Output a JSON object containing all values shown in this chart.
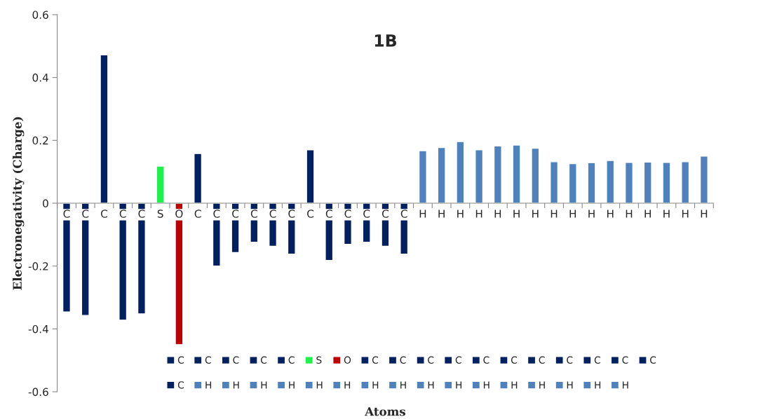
{
  "chart_data": {
    "type": "bar",
    "title": "1B",
    "xlabel": "Atoms",
    "ylabel": "Electronegativity (Charge)",
    "categories": [
      "C",
      "C",
      "C",
      "C",
      "C",
      "S",
      "O",
      "C",
      "C",
      "C",
      "C",
      "C",
      "C",
      "C",
      "C",
      "C",
      "C",
      "C",
      "C",
      "H",
      "H",
      "H",
      "H",
      "H",
      "H",
      "H",
      "H",
      "H",
      "H",
      "H",
      "H",
      "H",
      "H",
      "H",
      "H"
    ],
    "series": [
      {
        "name": "C",
        "color": "#002060",
        "values": [
          -0.346,
          null,
          null,
          null,
          null,
          null,
          null,
          null,
          null,
          null,
          null,
          null,
          null,
          null,
          null,
          null,
          null,
          null,
          null,
          null,
          null,
          null,
          null,
          null,
          null,
          null,
          null,
          null,
          null,
          null,
          null,
          null,
          null,
          null,
          null
        ]
      },
      {
        "name": "C",
        "color": "#002060",
        "values": [
          null,
          -0.357,
          null,
          null,
          null,
          null,
          null,
          null,
          null,
          null,
          null,
          null,
          null,
          null,
          null,
          null,
          null,
          null,
          null,
          null,
          null,
          null,
          null,
          null,
          null,
          null,
          null,
          null,
          null,
          null,
          null,
          null,
          null,
          null,
          null
        ]
      },
      {
        "name": "C",
        "color": "#002060",
        "values": [
          null,
          null,
          0.472,
          null,
          null,
          null,
          null,
          null,
          null,
          null,
          null,
          null,
          null,
          null,
          null,
          null,
          null,
          null,
          null,
          null,
          null,
          null,
          null,
          null,
          null,
          null,
          null,
          null,
          null,
          null,
          null,
          null,
          null,
          null,
          null
        ]
      },
      {
        "name": "C",
        "color": "#002060",
        "values": [
          null,
          null,
          null,
          -0.372,
          null,
          null,
          null,
          null,
          null,
          null,
          null,
          null,
          null,
          null,
          null,
          null,
          null,
          null,
          null,
          null,
          null,
          null,
          null,
          null,
          null,
          null,
          null,
          null,
          null,
          null,
          null,
          null,
          null,
          null,
          null
        ]
      },
      {
        "name": "C",
        "color": "#002060",
        "values": [
          null,
          null,
          null,
          null,
          -0.352,
          null,
          null,
          null,
          null,
          null,
          null,
          null,
          null,
          null,
          null,
          null,
          null,
          null,
          null,
          null,
          null,
          null,
          null,
          null,
          null,
          null,
          null,
          null,
          null,
          null,
          null,
          null,
          null,
          null,
          null
        ]
      },
      {
        "name": "S",
        "color": "#1ef24a",
        "values": [
          null,
          null,
          null,
          null,
          null,
          0.118,
          null,
          null,
          null,
          null,
          null,
          null,
          null,
          null,
          null,
          null,
          null,
          null,
          null,
          null,
          null,
          null,
          null,
          null,
          null,
          null,
          null,
          null,
          null,
          null,
          null,
          null,
          null,
          null,
          null
        ]
      },
      {
        "name": "O",
        "color": "#c00000",
        "values": [
          null,
          null,
          null,
          null,
          null,
          null,
          -0.45,
          null,
          null,
          null,
          null,
          null,
          null,
          null,
          null,
          null,
          null,
          null,
          null,
          null,
          null,
          null,
          null,
          null,
          null,
          null,
          null,
          null,
          null,
          null,
          null,
          null,
          null,
          null,
          null
        ]
      },
      {
        "name": "C",
        "color": "#002060",
        "values": [
          null,
          null,
          null,
          null,
          null,
          null,
          null,
          0.158,
          null,
          null,
          null,
          null,
          null,
          null,
          null,
          null,
          null,
          null,
          null,
          null,
          null,
          null,
          null,
          null,
          null,
          null,
          null,
          null,
          null,
          null,
          null,
          null,
          null,
          null,
          null
        ]
      },
      {
        "name": "C",
        "color": "#002060",
        "values": [
          null,
          null,
          null,
          null,
          null,
          null,
          null,
          null,
          -0.2,
          null,
          null,
          null,
          null,
          null,
          null,
          null,
          null,
          null,
          null,
          null,
          null,
          null,
          null,
          null,
          null,
          null,
          null,
          null,
          null,
          null,
          null,
          null,
          null,
          null,
          null
        ]
      },
      {
        "name": "C",
        "color": "#002060",
        "values": [
          null,
          null,
          null,
          null,
          null,
          null,
          null,
          null,
          null,
          -0.157,
          null,
          null,
          null,
          null,
          null,
          null,
          null,
          null,
          null,
          null,
          null,
          null,
          null,
          null,
          null,
          null,
          null,
          null,
          null,
          null,
          null,
          null,
          null,
          null,
          null
        ]
      },
      {
        "name": "C",
        "color": "#002060",
        "values": [
          null,
          null,
          null,
          null,
          null,
          null,
          null,
          null,
          null,
          null,
          -0.124,
          null,
          null,
          null,
          null,
          null,
          null,
          null,
          null,
          null,
          null,
          null,
          null,
          null,
          null,
          null,
          null,
          null,
          null,
          null,
          null,
          null,
          null,
          null,
          null
        ]
      },
      {
        "name": "C",
        "color": "#002060",
        "values": [
          null,
          null,
          null,
          null,
          null,
          null,
          null,
          null,
          null,
          null,
          null,
          -0.137,
          null,
          null,
          null,
          null,
          null,
          null,
          null,
          null,
          null,
          null,
          null,
          null,
          null,
          null,
          null,
          null,
          null,
          null,
          null,
          null,
          null,
          null,
          null
        ]
      },
      {
        "name": "C",
        "color": "#002060",
        "values": [
          null,
          null,
          null,
          null,
          null,
          null,
          null,
          null,
          null,
          null,
          null,
          null,
          -0.162,
          null,
          null,
          null,
          null,
          null,
          null,
          null,
          null,
          null,
          null,
          null,
          null,
          null,
          null,
          null,
          null,
          null,
          null,
          null,
          null,
          null,
          null
        ]
      },
      {
        "name": "C",
        "color": "#002060",
        "values": [
          null,
          null,
          null,
          null,
          null,
          null,
          null,
          null,
          null,
          null,
          null,
          null,
          null,
          0.17,
          null,
          null,
          null,
          null,
          null,
          null,
          null,
          null,
          null,
          null,
          null,
          null,
          null,
          null,
          null,
          null,
          null,
          null,
          null,
          null,
          null
        ]
      },
      {
        "name": "C",
        "color": "#002060",
        "values": [
          null,
          null,
          null,
          null,
          null,
          null,
          null,
          null,
          null,
          null,
          null,
          null,
          null,
          null,
          -0.182,
          null,
          null,
          null,
          null,
          null,
          null,
          null,
          null,
          null,
          null,
          null,
          null,
          null,
          null,
          null,
          null,
          null,
          null,
          null,
          null
        ]
      },
      {
        "name": "C",
        "color": "#002060",
        "values": [
          null,
          null,
          null,
          null,
          null,
          null,
          null,
          null,
          null,
          null,
          null,
          null,
          null,
          null,
          null,
          -0.131,
          null,
          null,
          null,
          null,
          null,
          null,
          null,
          null,
          null,
          null,
          null,
          null,
          null,
          null,
          null,
          null,
          null,
          null,
          null
        ]
      },
      {
        "name": "C",
        "color": "#002060",
        "values": [
          null,
          null,
          null,
          null,
          null,
          null,
          null,
          null,
          null,
          null,
          null,
          null,
          null,
          null,
          null,
          null,
          -0.124,
          null,
          null,
          null,
          null,
          null,
          null,
          null,
          null,
          null,
          null,
          null,
          null,
          null,
          null,
          null,
          null,
          null,
          null
        ]
      },
      {
        "name": "C",
        "color": "#002060",
        "values": [
          null,
          null,
          null,
          null,
          null,
          null,
          null,
          null,
          null,
          null,
          null,
          null,
          null,
          null,
          null,
          null,
          null,
          -0.137,
          null,
          null,
          null,
          null,
          null,
          null,
          null,
          null,
          null,
          null,
          null,
          null,
          null,
          null,
          null,
          null,
          null
        ]
      },
      {
        "name": "C",
        "color": "#002060",
        "values": [
          null,
          null,
          null,
          null,
          null,
          null,
          null,
          null,
          null,
          null,
          null,
          null,
          null,
          null,
          null,
          null,
          null,
          null,
          -0.162,
          null,
          null,
          null,
          null,
          null,
          null,
          null,
          null,
          null,
          null,
          null,
          null,
          null,
          null,
          null,
          null
        ]
      },
      {
        "name": "H",
        "color": "#4f81bd",
        "values": [
          null,
          null,
          null,
          null,
          null,
          null,
          null,
          null,
          null,
          null,
          null,
          null,
          null,
          null,
          null,
          null,
          null,
          null,
          null,
          0.167,
          null,
          null,
          null,
          null,
          null,
          null,
          null,
          null,
          null,
          null,
          null,
          null,
          null,
          null,
          null
        ]
      },
      {
        "name": "H",
        "color": "#4f81bd",
        "values": [
          null,
          null,
          null,
          null,
          null,
          null,
          null,
          null,
          null,
          null,
          null,
          null,
          null,
          null,
          null,
          null,
          null,
          null,
          null,
          null,
          0.177,
          null,
          null,
          null,
          null,
          null,
          null,
          null,
          null,
          null,
          null,
          null,
          null,
          null,
          null
        ]
      },
      {
        "name": "H",
        "color": "#4f81bd",
        "values": [
          null,
          null,
          null,
          null,
          null,
          null,
          null,
          null,
          null,
          null,
          null,
          null,
          null,
          null,
          null,
          null,
          null,
          null,
          null,
          null,
          null,
          0.196,
          null,
          null,
          null,
          null,
          null,
          null,
          null,
          null,
          null,
          null,
          null,
          null,
          null
        ]
      },
      {
        "name": "H",
        "color": "#4f81bd",
        "values": [
          null,
          null,
          null,
          null,
          null,
          null,
          null,
          null,
          null,
          null,
          null,
          null,
          null,
          null,
          null,
          null,
          null,
          null,
          null,
          null,
          null,
          null,
          0.17,
          null,
          null,
          null,
          null,
          null,
          null,
          null,
          null,
          null,
          null,
          null,
          null
        ]
      },
      {
        "name": "H",
        "color": "#4f81bd",
        "values": [
          null,
          null,
          null,
          null,
          null,
          null,
          null,
          null,
          null,
          null,
          null,
          null,
          null,
          null,
          null,
          null,
          null,
          null,
          null,
          null,
          null,
          null,
          null,
          0.182,
          null,
          null,
          null,
          null,
          null,
          null,
          null,
          null,
          null,
          null,
          null
        ]
      },
      {
        "name": "H",
        "color": "#4f81bd",
        "values": [
          null,
          null,
          null,
          null,
          null,
          null,
          null,
          null,
          null,
          null,
          null,
          null,
          null,
          null,
          null,
          null,
          null,
          null,
          null,
          null,
          null,
          null,
          null,
          null,
          0.185,
          null,
          null,
          null,
          null,
          null,
          null,
          null,
          null,
          null,
          null
        ]
      },
      {
        "name": "H",
        "color": "#4f81bd",
        "values": [
          null,
          null,
          null,
          null,
          null,
          null,
          null,
          null,
          null,
          null,
          null,
          null,
          null,
          null,
          null,
          null,
          null,
          null,
          null,
          null,
          null,
          null,
          null,
          null,
          null,
          0.175,
          null,
          null,
          null,
          null,
          null,
          null,
          null,
          null,
          null
        ]
      },
      {
        "name": "H",
        "color": "#4f81bd",
        "values": [
          null,
          null,
          null,
          null,
          null,
          null,
          null,
          null,
          null,
          null,
          null,
          null,
          null,
          null,
          null,
          null,
          null,
          null,
          null,
          null,
          null,
          null,
          null,
          null,
          null,
          null,
          0.132,
          null,
          null,
          null,
          null,
          null,
          null,
          null,
          null
        ]
      },
      {
        "name": "H",
        "color": "#4f81bd",
        "values": [
          null,
          null,
          null,
          null,
          null,
          null,
          null,
          null,
          null,
          null,
          null,
          null,
          null,
          null,
          null,
          null,
          null,
          null,
          null,
          null,
          null,
          null,
          null,
          null,
          null,
          null,
          null,
          0.126,
          null,
          null,
          null,
          null,
          null,
          null,
          null
        ]
      },
      {
        "name": "H",
        "color": "#4f81bd",
        "values": [
          null,
          null,
          null,
          null,
          null,
          null,
          null,
          null,
          null,
          null,
          null,
          null,
          null,
          null,
          null,
          null,
          null,
          null,
          null,
          null,
          null,
          null,
          null,
          null,
          null,
          null,
          null,
          null,
          0.129,
          null,
          null,
          null,
          null,
          null,
          null
        ]
      },
      {
        "name": "H",
        "color": "#4f81bd",
        "values": [
          null,
          null,
          null,
          null,
          null,
          null,
          null,
          null,
          null,
          null,
          null,
          null,
          null,
          null,
          null,
          null,
          null,
          null,
          null,
          null,
          null,
          null,
          null,
          null,
          null,
          null,
          null,
          null,
          null,
          0.136,
          null,
          null,
          null,
          null,
          null
        ]
      },
      {
        "name": "H",
        "color": "#4f81bd",
        "values": [
          null,
          null,
          null,
          null,
          null,
          null,
          null,
          null,
          null,
          null,
          null,
          null,
          null,
          null,
          null,
          null,
          null,
          null,
          null,
          null,
          null,
          null,
          null,
          null,
          null,
          null,
          null,
          null,
          null,
          null,
          0.13,
          null,
          null,
          null,
          null
        ]
      },
      {
        "name": "H",
        "color": "#4f81bd",
        "values": [
          null,
          null,
          null,
          null,
          null,
          null,
          null,
          null,
          null,
          null,
          null,
          null,
          null,
          null,
          null,
          null,
          null,
          null,
          null,
          null,
          null,
          null,
          null,
          null,
          null,
          null,
          null,
          null,
          null,
          null,
          null,
          0.131,
          null,
          null,
          null
        ]
      },
      {
        "name": "H",
        "color": "#4f81bd",
        "values": [
          null,
          null,
          null,
          null,
          null,
          null,
          null,
          null,
          null,
          null,
          null,
          null,
          null,
          null,
          null,
          null,
          null,
          null,
          null,
          null,
          null,
          null,
          null,
          null,
          null,
          null,
          null,
          null,
          null,
          null,
          null,
          null,
          0.13,
          null,
          null
        ]
      },
      {
        "name": "H",
        "color": "#4f81bd",
        "values": [
          null,
          null,
          null,
          null,
          null,
          null,
          null,
          null,
          null,
          null,
          null,
          null,
          null,
          null,
          null,
          null,
          null,
          null,
          null,
          null,
          null,
          null,
          null,
          null,
          null,
          null,
          null,
          null,
          null,
          null,
          null,
          null,
          null,
          0.132,
          null
        ]
      },
      {
        "name": "H",
        "color": "#4f81bd",
        "values": [
          null,
          null,
          null,
          null,
          null,
          null,
          null,
          null,
          null,
          null,
          null,
          null,
          null,
          null,
          null,
          null,
          null,
          null,
          null,
          null,
          null,
          null,
          null,
          null,
          null,
          null,
          null,
          null,
          null,
          null,
          null,
          null,
          null,
          null,
          0.15
        ]
      }
    ],
    "ylim": [
      -0.6,
      0.6
    ],
    "yticks": [
      {
        "value": -0.6,
        "label": "-0.6"
      },
      {
        "value": -0.4,
        "label": "-0.4"
      },
      {
        "value": -0.2,
        "label": "-0.2"
      },
      0,
      0.2,
      0.4,
      0.6
    ],
    "grid": false,
    "legend": "bottom"
  }
}
